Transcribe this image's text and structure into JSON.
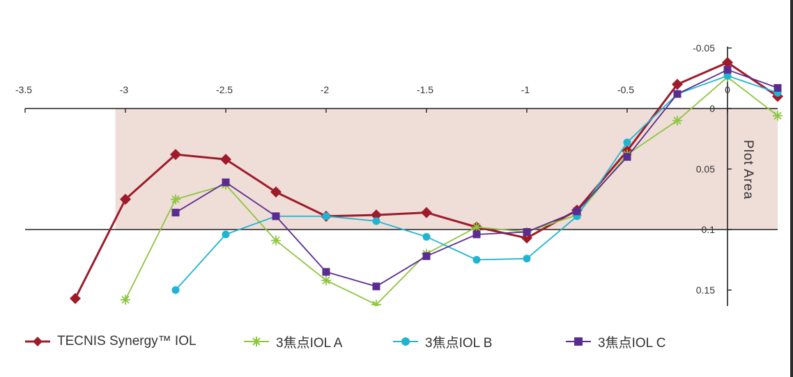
{
  "chart_data": {
    "type": "line",
    "title": "",
    "xlabel": "",
    "ylabel": "Plot Area",
    "xlim": [
      -3.5,
      0.25
    ],
    "ylim": [
      0.165,
      -0.06
    ],
    "x_tick_values": [
      -3.5,
      -3,
      -2.5,
      -2,
      -1.5,
      -1,
      -0.5,
      0
    ],
    "x_tick_labels": [
      "-3.5",
      "-3",
      "-2.5",
      "-2",
      "-1.5",
      "-1",
      "-0.5",
      "0"
    ],
    "y_tick_values": [
      -0.05,
      0,
      0.05,
      0.1,
      0.15
    ],
    "y_tick_labels": [
      "-0.05",
      "0",
      "0.05",
      "0.1",
      "0.15"
    ],
    "shaded_band": [
      0,
      0.1
    ],
    "shaded_band_x": [
      -3.05,
      0.25
    ],
    "legend_position": "bottom",
    "series": [
      {
        "name": "TECNIS Synergy™ IOL",
        "color": "#9e1b2a",
        "marker": "diamond",
        "x": [
          -3.25,
          -3,
          -2.75,
          -2.5,
          -2.25,
          -2,
          -1.75,
          -1.5,
          -1.25,
          -1,
          -0.75,
          -0.5,
          -0.25,
          0,
          0.25
        ],
        "y": [
          0.157,
          0.075,
          0.038,
          0.042,
          0.069,
          0.089,
          0.088,
          0.086,
          0.098,
          0.107,
          0.084,
          0.035,
          -0.02,
          -0.038,
          -0.01
        ]
      },
      {
        "name": "3焦点IOL A",
        "color": "#8dc63f",
        "marker": "asterisk",
        "x": [
          -3,
          -2.75,
          -2.5,
          -2.25,
          -2,
          -1.75,
          -1.5,
          -1.25,
          -1,
          -0.75,
          -0.5,
          -0.25,
          0,
          0.25
        ],
        "y": [
          0.158,
          0.075,
          0.063,
          0.109,
          0.142,
          0.162,
          0.12,
          0.098,
          0.102,
          0.088,
          0.038,
          0.01,
          -0.026,
          0.006
        ]
      },
      {
        "name": "3焦点IOL B",
        "color": "#1fb4d2",
        "marker": "circle",
        "x": [
          -2.75,
          -2.5,
          -2.25,
          -2,
          -1.75,
          -1.5,
          -1.25,
          -1,
          -0.75,
          -0.5,
          -0.25,
          0,
          0.25
        ],
        "y": [
          0.15,
          0.104,
          0.089,
          0.089,
          0.093,
          0.106,
          0.125,
          0.124,
          0.089,
          0.028,
          -0.012,
          -0.027,
          -0.013
        ]
      },
      {
        "name": "3焦点IOL C",
        "color": "#5b2c8f",
        "marker": "square",
        "x": [
          -2.75,
          -2.5,
          -2.25,
          -2,
          -1.75,
          -1.5,
          -1.25,
          -1,
          -0.75,
          -0.5,
          -0.25,
          0,
          0.25
        ],
        "y": [
          0.086,
          0.061,
          0.089,
          0.135,
          0.147,
          0.122,
          0.104,
          0.102,
          0.085,
          0.04,
          -0.012,
          -0.032,
          -0.017
        ]
      }
    ]
  }
}
